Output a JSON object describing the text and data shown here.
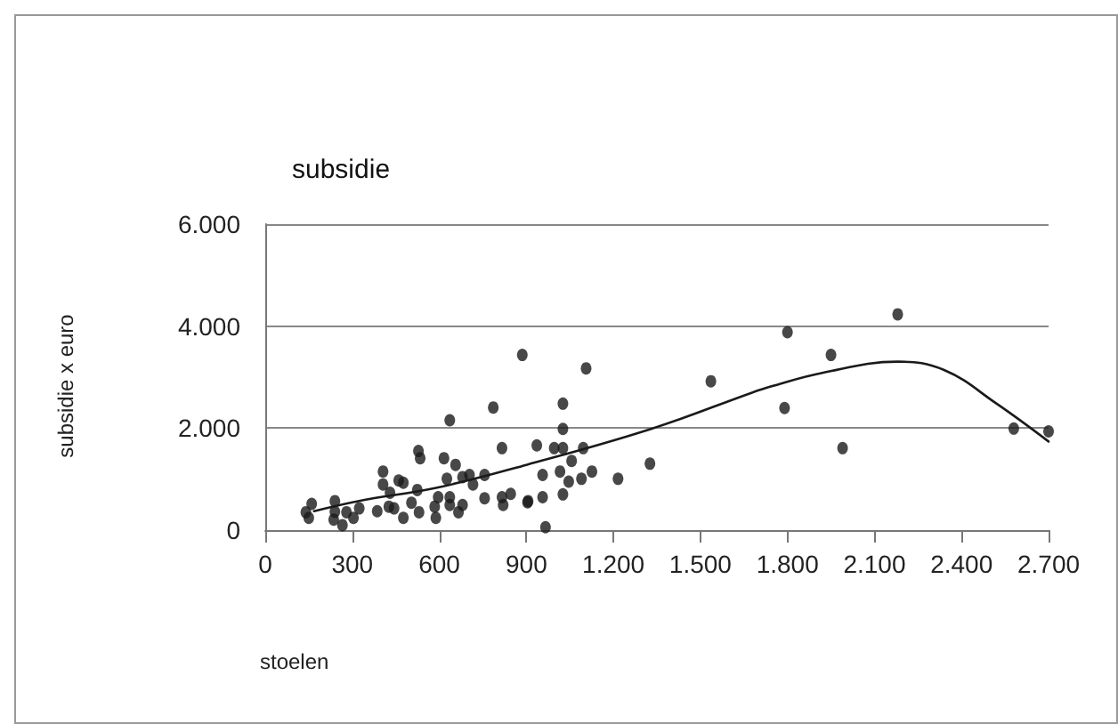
{
  "chart_data": {
    "type": "scatter",
    "title": "subsidie",
    "xlabel": "stoelen",
    "ylabel": "subsidie x euro",
    "series": [
      {
        "color": "#1a1a1a",
        "marker": "circle",
        "x": [
          140,
          160,
          150,
          240,
          240,
          236,
          266,
          280,
          304,
          324,
          386,
          406,
          406,
          426,
          430,
          444,
          460,
          476,
          476,
          504,
          524,
          528,
          534,
          530,
          584,
          588,
          596,
          616,
          636,
          626,
          636,
          636,
          656,
          666,
          680,
          680,
          704,
          716,
          756,
          756,
          786,
          816,
          816,
          846,
          820,
          886,
          904,
          1106,
          1026,
          1026,
          936,
          996,
          1026,
          1096,
          1056,
          956,
          1016,
          1046,
          1090,
          1126,
          1216,
          1326,
          1536,
          906,
          956,
          1026,
          966,
          1800,
          1790,
          1950,
          1990,
          2180,
          2580,
          2700
        ],
        "values": [
          351,
          515,
          240,
          568,
          360,
          207,
          98,
          351,
          240,
          426,
          371,
          1148,
          896,
          460,
          733,
          426,
          973,
          929,
          240,
          536,
          787,
          1551,
          1410,
          351,
          460,
          240,
          646,
          1410,
          2155,
          1006,
          646,
          493,
          1279,
          351,
          493,
          1039,
          1082,
          896,
          1082,
          623,
          2404,
          1607,
          646,
          711,
          493,
          3434,
          547,
          3172,
          2480,
          1984,
          1662,
          1607,
          1607,
          1607,
          1356,
          1082,
          1148,
          951,
          1006,
          1148,
          1006,
          1302,
          2919,
          568,
          646,
          700,
          56,
          3880,
          2394,
          3434,
          1607,
          4231,
          1991,
          1935
        ]
      },
      {
        "type": "line",
        "color": "#1a1a1a",
        "marker": "none",
        "line_style": "solid",
        "x": [
          168,
          320,
          600,
          900,
          1330,
          1680,
          1740,
          1920,
          2180,
          2340,
          2520,
          2700
        ],
        "values": [
          371,
          568,
          843,
          1279,
          1984,
          2700,
          2811,
          3083,
          3303,
          3139,
          2483,
          1738
        ]
      }
    ],
    "xlim": [
      0,
      2700
    ],
    "xticks": [
      0,
      {
        "value": 300,
        "label": "300"
      },
      {
        "value": 600,
        "label": "600"
      },
      {
        "value": 900,
        "label": "900"
      },
      {
        "value": 1200,
        "label": "1.200"
      },
      {
        "value": 1500,
        "label": "1.500"
      },
      {
        "value": 1800,
        "label": "1.800"
      },
      {
        "value": 2100,
        "label": "2.100"
      },
      {
        "value": 2400,
        "label": "2.400"
      },
      {
        "value": 2700,
        "label": "2.700"
      }
    ],
    "ylim": [
      0,
      6000
    ],
    "yticks": [
      0,
      {
        "value": 2000,
        "label": "2.000"
      },
      {
        "value": 4000,
        "label": "4.000"
      },
      {
        "value": 6000,
        "label": "6.000"
      }
    ],
    "grid": "y"
  }
}
